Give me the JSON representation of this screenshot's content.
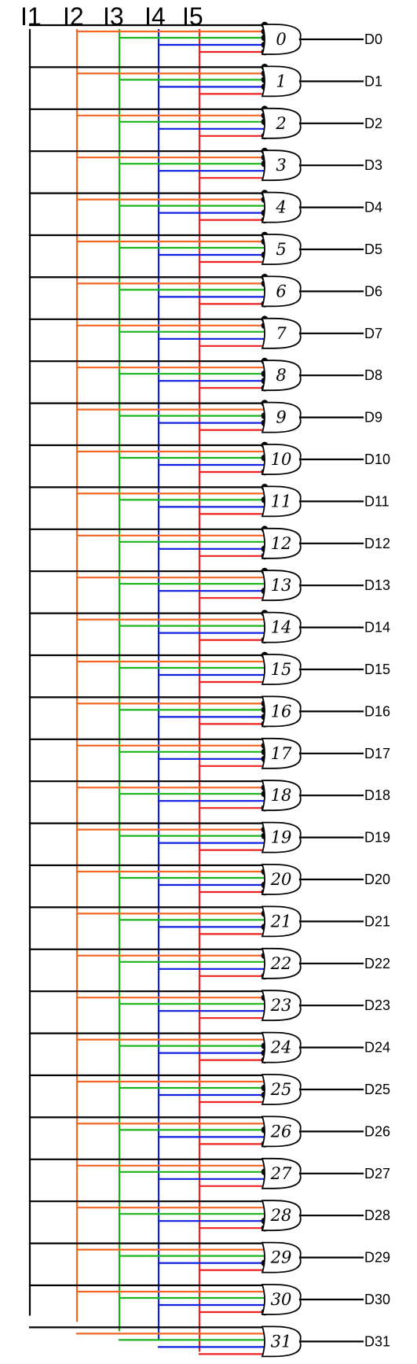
{
  "inputs": [
    {
      "label": "I1",
      "color": "#000000"
    },
    {
      "label": "I2",
      "color": "#f26522"
    },
    {
      "label": "I3",
      "color": "#1bb51b"
    },
    {
      "label": "I4",
      "color": "#1020e0"
    },
    {
      "label": "I5",
      "color": "#ee2222"
    }
  ],
  "gates": [
    {
      "number": "0",
      "output": "D0"
    },
    {
      "number": "1",
      "output": "D1"
    },
    {
      "number": "2",
      "output": "D2"
    },
    {
      "number": "3",
      "output": "D3"
    },
    {
      "number": "4",
      "output": "D4"
    },
    {
      "number": "5",
      "output": "D5"
    },
    {
      "number": "6",
      "output": "D6"
    },
    {
      "number": "7",
      "output": "D7"
    },
    {
      "number": "8",
      "output": "D8"
    },
    {
      "number": "9",
      "output": "D9"
    },
    {
      "number": "10",
      "output": "D10"
    },
    {
      "number": "11",
      "output": "D11"
    },
    {
      "number": "12",
      "output": "D12"
    },
    {
      "number": "13",
      "output": "D13"
    },
    {
      "number": "14",
      "output": "D14"
    },
    {
      "number": "15",
      "output": "D15"
    },
    {
      "number": "16",
      "output": "D16"
    },
    {
      "number": "17",
      "output": "D17"
    },
    {
      "number": "18",
      "output": "D18"
    },
    {
      "number": "19",
      "output": "D19"
    },
    {
      "number": "20",
      "output": "D20"
    },
    {
      "number": "21",
      "output": "D21"
    },
    {
      "number": "22",
      "output": "D22"
    },
    {
      "number": "23",
      "output": "D23"
    },
    {
      "number": "24",
      "output": "D24"
    },
    {
      "number": "25",
      "output": "D25"
    },
    {
      "number": "26",
      "output": "D26"
    },
    {
      "number": "27",
      "output": "D27"
    },
    {
      "number": "28",
      "output": "D28"
    },
    {
      "number": "29",
      "output": "D29"
    },
    {
      "number": "30",
      "output": "D30"
    },
    {
      "number": "31",
      "output": "D31"
    }
  ],
  "inverted_marker_color": "#000000"
}
